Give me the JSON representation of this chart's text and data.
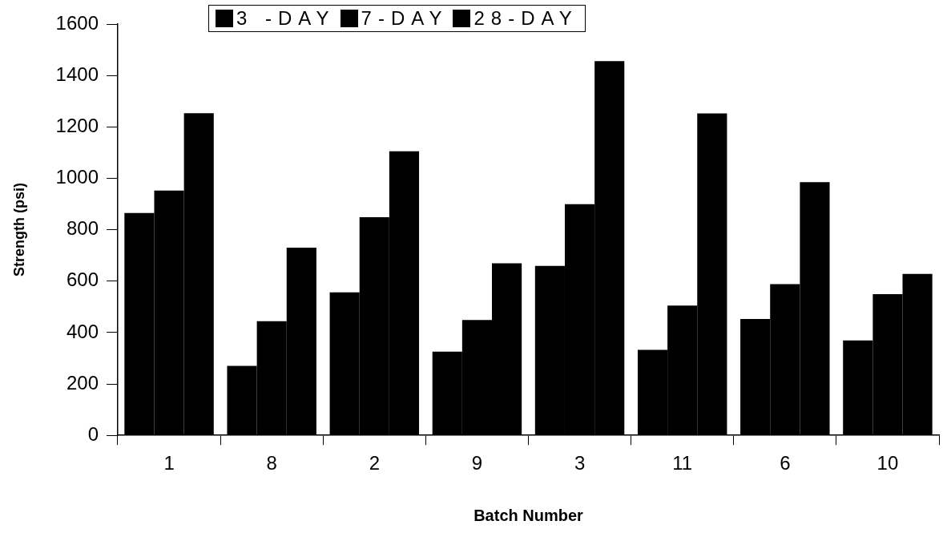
{
  "chart_data": {
    "type": "bar",
    "xlabel": "Batch Number",
    "ylabel": "Strength (psi)",
    "categories": [
      "1",
      "8",
      "2",
      "9",
      "3",
      "11",
      "6",
      "10"
    ],
    "series": [
      {
        "name": "3 -DAY",
        "color": "#000000",
        "values": [
          865,
          270,
          556,
          326,
          659,
          333,
          453,
          369
        ]
      },
      {
        "name": "7-DAY",
        "color": "#000000",
        "values": [
          952,
          444,
          849,
          449,
          899,
          505,
          588,
          549
        ]
      },
      {
        "name": "28-DAY",
        "color": "#000000",
        "values": [
          1253,
          730,
          1105,
          669,
          1456,
          1252,
          985,
          628
        ]
      }
    ],
    "ylim": [
      0,
      1600
    ],
    "yticks": [
      0,
      200,
      400,
      600,
      800,
      1000,
      1200,
      1400,
      1600
    ],
    "grid": false,
    "legend": "top"
  }
}
